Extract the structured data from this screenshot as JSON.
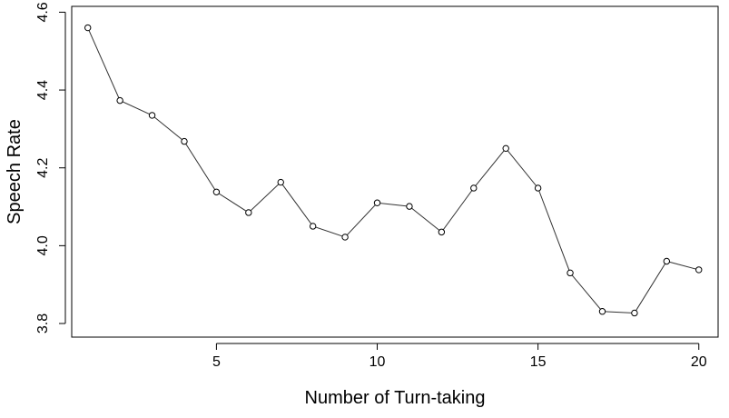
{
  "chart_data": {
    "type": "line",
    "title": "",
    "xlabel": "Number of Turn-taking",
    "ylabel": "Speech Rate",
    "x": [
      1,
      2,
      3,
      4,
      5,
      6,
      7,
      8,
      9,
      10,
      11,
      12,
      13,
      14,
      15,
      16,
      17,
      18,
      19,
      20
    ],
    "series": [
      {
        "values": [
          4.56,
          4.373,
          4.335,
          4.268,
          4.138,
          4.085,
          4.163,
          4.05,
          4.022,
          4.11,
          4.101,
          4.035,
          4.148,
          4.25,
          4.148,
          3.93,
          3.831,
          3.827,
          3.96,
          3.938
        ]
      }
    ],
    "xlim": [
      0.5,
      20.6
    ],
    "ylim": [
      3.765,
      4.615
    ],
    "xticks": [
      5,
      10,
      15,
      20
    ],
    "yticks": [
      3.8,
      4.0,
      4.2,
      4.4,
      4.6
    ],
    "xtick_labels": [
      "5",
      "10",
      "15",
      "20"
    ],
    "ytick_labels": [
      "3.8",
      "4.0",
      "4.2",
      "4.4",
      "4.6"
    ],
    "grid": false,
    "legend": "none",
    "line_color": "#333333",
    "marker": "open-circle"
  }
}
